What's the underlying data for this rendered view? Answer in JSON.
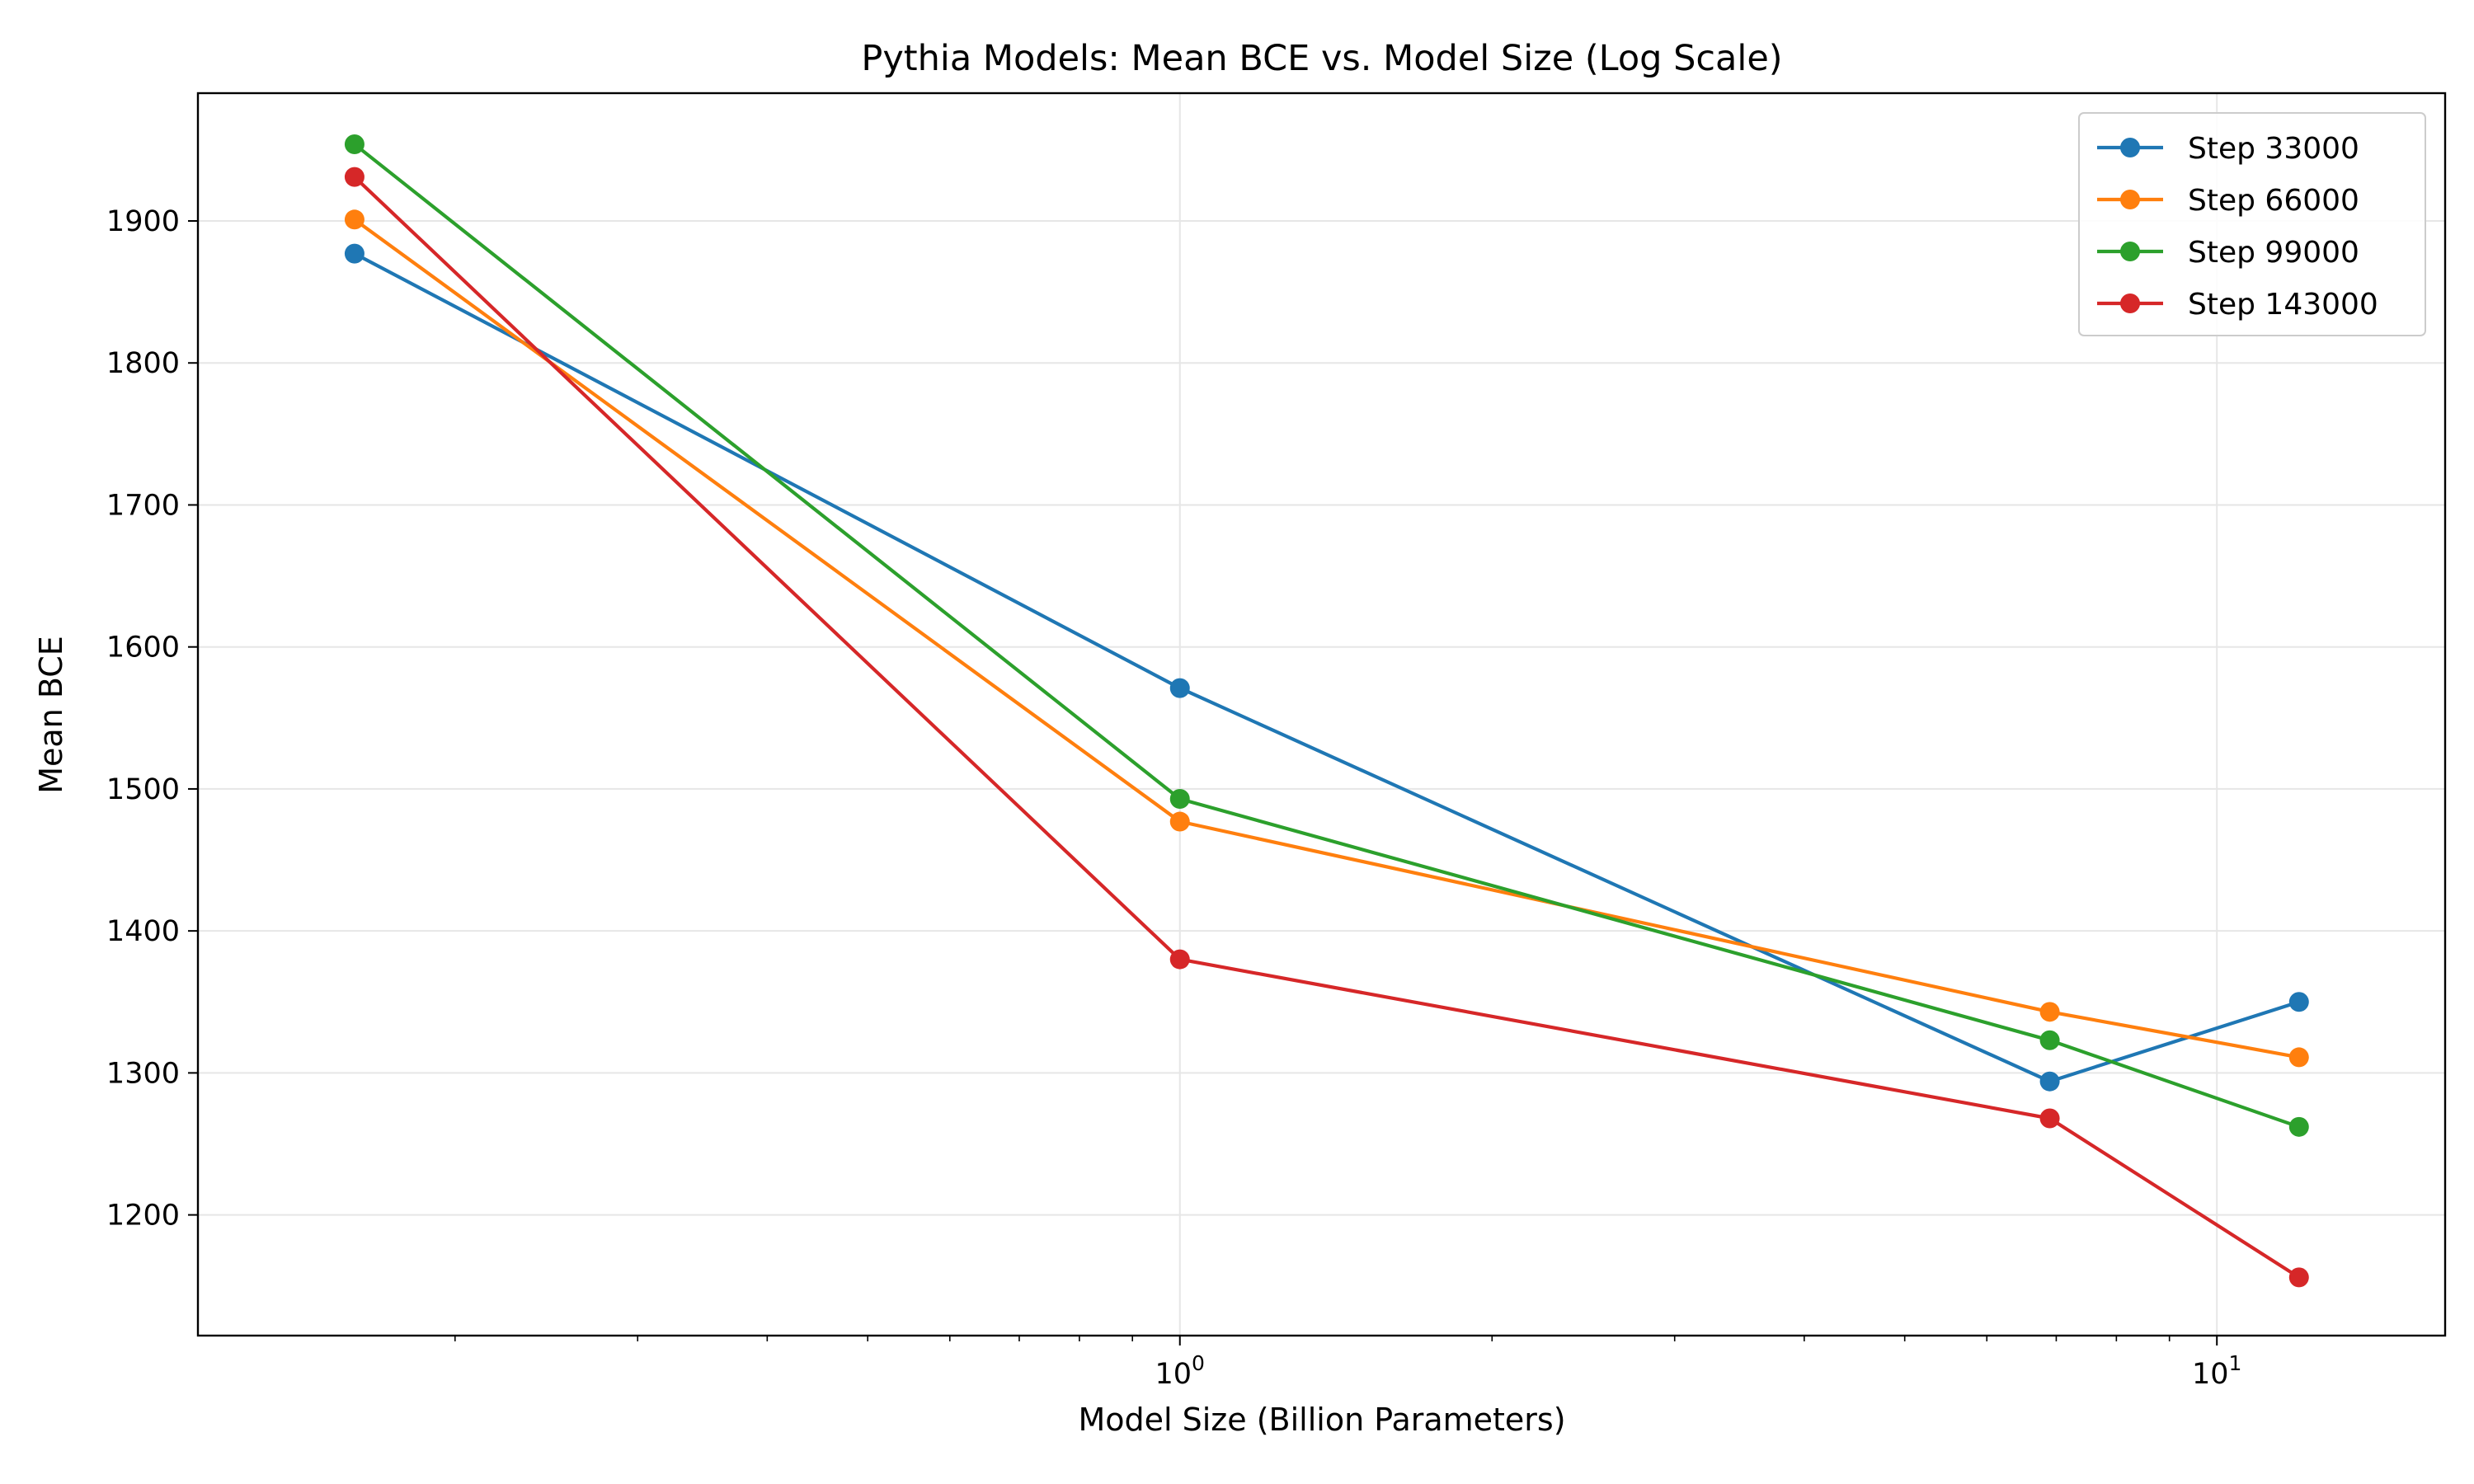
{
  "chart_data": {
    "type": "line",
    "title": "Pythia Models: Mean BCE vs. Model Size (Log Scale)",
    "xlabel": "Model Size (Billion Parameters)",
    "ylabel": "Mean BCE",
    "xscale": "log",
    "xlim": [
      0.113,
      16.6
    ],
    "ylim": [
      1115,
      1990
    ],
    "x_ticks": [
      1,
      10
    ],
    "x_tick_labels": [
      {
        "base": "10",
        "exp": "0"
      },
      {
        "base": "10",
        "exp": "1"
      }
    ],
    "y_ticks": [
      1200,
      1300,
      1400,
      1500,
      1600,
      1700,
      1800,
      1900
    ],
    "y_tick_labels": [
      "1200",
      "1300",
      "1400",
      "1500",
      "1600",
      "1700",
      "1800",
      "1900"
    ],
    "grid": true,
    "legend_position": "top-right",
    "x": [
      0.16,
      1.0,
      6.9,
      12.0
    ],
    "series": [
      {
        "name": "Step 33000",
        "color": "#1f77b4",
        "values": [
          1877,
          1571,
          1294,
          1350
        ]
      },
      {
        "name": "Step 66000",
        "color": "#ff7f0e",
        "values": [
          1901,
          1477,
          1343,
          1311
        ]
      },
      {
        "name": "Step 99000",
        "color": "#2ca02c",
        "values": [
          1954,
          1493,
          1323,
          1262
        ]
      },
      {
        "name": "Step 143000",
        "color": "#d62728",
        "values": [
          1931,
          1380,
          1268,
          1156
        ]
      }
    ]
  }
}
